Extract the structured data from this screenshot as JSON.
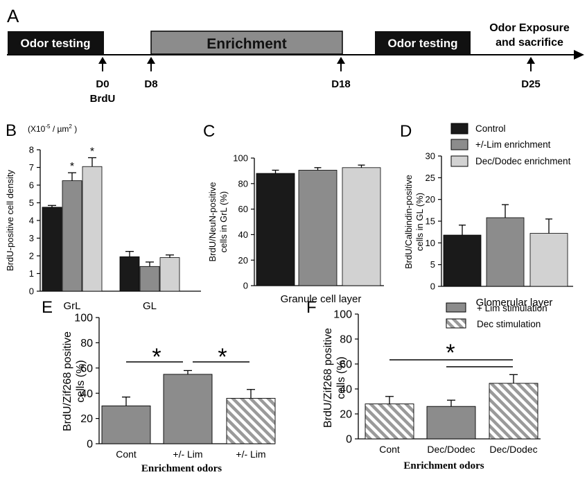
{
  "timeline": {
    "panel_label": "A",
    "blocks": [
      {
        "label": "Odor testing",
        "fill": "#111111",
        "text_color": "#ffffff"
      },
      {
        "label": "Enrichment",
        "fill": "#8c8c8c",
        "text_color": "#111111"
      },
      {
        "label": "Odor testing",
        "fill": "#111111",
        "text_color": "#ffffff"
      }
    ],
    "final_label_line1": "Odor Exposure",
    "final_label_line2": "and sacrifice",
    "markers": [
      {
        "day": "D0",
        "extra": "BrdU"
      },
      {
        "day": "D8",
        "extra": ""
      },
      {
        "day": "D18",
        "extra": ""
      },
      {
        "day": "D25",
        "extra": ""
      }
    ]
  },
  "legend_D": {
    "entries": [
      {
        "label": "Control",
        "color": "#1a1a1a"
      },
      {
        "label": "+/-Lim enrichment",
        "color": "#8c8c8c"
      },
      {
        "label": "Dec/Dodec enrichment",
        "color": "#d2d2d2"
      }
    ]
  },
  "legend_F": {
    "entries": [
      {
        "label": "+ Lim stimulation",
        "pattern": "solid",
        "color": "#8c8c8c"
      },
      {
        "label": "Dec stimulation",
        "pattern": "hatch",
        "color": "#9a9a9a"
      }
    ]
  },
  "chart_data": [
    {
      "panel": "B",
      "type": "bar",
      "unit_label": "(X10-5 / µm2 )",
      "ylabel": "BrdU-positive cell density",
      "categories": [
        "GrL",
        "GL"
      ],
      "series_colors": [
        "#1a1a1a",
        "#8c8c8c",
        "#d2d2d2"
      ],
      "series": [
        {
          "name": "Control",
          "values": [
            4.75,
            1.95
          ],
          "errors": [
            0.1,
            0.3
          ]
        },
        {
          "name": "+/-Lim enrichment",
          "values": [
            6.25,
            1.4
          ],
          "errors": [
            0.45,
            0.25
          ]
        },
        {
          "name": "Dec/Dodec enrichment",
          "values": [
            7.05,
            1.9
          ],
          "errors": [
            0.5,
            0.15
          ]
        }
      ],
      "significance": [
        [
          false,
          false
        ],
        [
          true,
          false
        ],
        [
          true,
          false
        ]
      ],
      "ylim": [
        0,
        8
      ],
      "yticks": [
        0,
        1,
        2,
        3,
        4,
        5,
        6,
        7,
        8
      ]
    },
    {
      "panel": "C",
      "type": "bar",
      "ylabel_line1": "BrdU/NeuN-positive",
      "ylabel_line2": "cells in GrL (%)",
      "xlabel": "Granule cell layer",
      "colors": [
        "#1a1a1a",
        "#8c8c8c",
        "#d2d2d2"
      ],
      "values": [
        88,
        90.5,
        92.5
      ],
      "errors": [
        2.5,
        2.0,
        2.0
      ],
      "ylim": [
        0,
        100
      ],
      "yticks": [
        0,
        20,
        40,
        60,
        80,
        100
      ]
    },
    {
      "panel": "D",
      "type": "bar",
      "ylabel_line1": "BrdU/Calbindin-positive",
      "ylabel_line2": "cells in GL (%)",
      "xlabel": "Glomerular  layer",
      "colors": [
        "#1a1a1a",
        "#8c8c8c",
        "#d2d2d2"
      ],
      "values": [
        11.8,
        15.8,
        12.2
      ],
      "errors": [
        2.3,
        3.0,
        3.3
      ],
      "ylim": [
        0,
        30
      ],
      "yticks": [
        0,
        5,
        10,
        15,
        20,
        25,
        30
      ]
    },
    {
      "panel": "E",
      "type": "bar",
      "ylabel_line1": "BrdU/Zif268 positive",
      "ylabel_line2": "cells (%)",
      "xlabel": "Enrichment odors",
      "categories": [
        "Cont",
        "+/- Lim",
        "+/- Lim"
      ],
      "patterns": [
        "solid",
        "solid",
        "hatch"
      ],
      "values": [
        30,
        55,
        36
      ],
      "errors": [
        7,
        3,
        7
      ],
      "ylim": [
        0,
        100
      ],
      "yticks": [
        0,
        20,
        40,
        60,
        80,
        100
      ],
      "star": "*"
    },
    {
      "panel": "F",
      "type": "bar",
      "ylabel_line1": "BrdU/Zif268 positive",
      "ylabel_line2": "cells (%)",
      "xlabel": "Enrichment odors",
      "categories": [
        "Cont",
        "Dec/Dodec",
        "Dec/Dodec"
      ],
      "patterns": [
        "hatch",
        "solid",
        "hatch"
      ],
      "values": [
        28,
        26,
        44.5
      ],
      "errors": [
        6,
        5,
        7
      ],
      "ylim": [
        0,
        100
      ],
      "yticks": [
        0,
        20,
        40,
        60,
        80,
        100
      ],
      "star": "*"
    }
  ]
}
